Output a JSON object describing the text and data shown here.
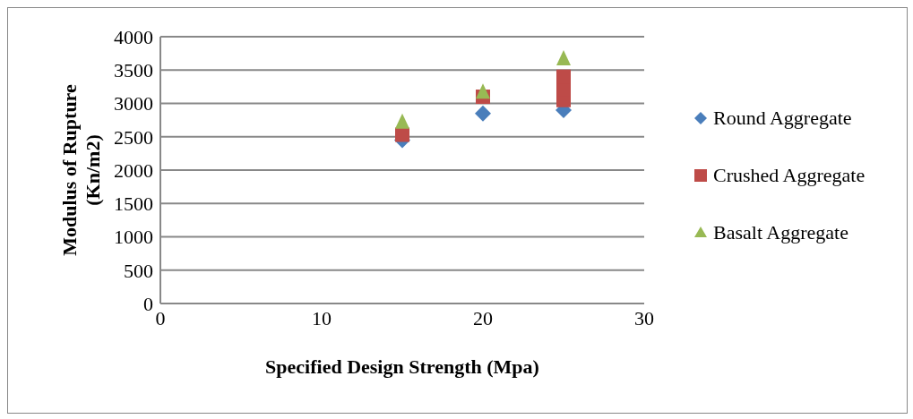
{
  "chart_data": {
    "type": "scatter",
    "xlabel": "Specified Design Strength (Mpa)",
    "ylabel": "Modulus of Rupture (Kn/m2)",
    "series": [
      {
        "name": "Round Aggregate",
        "color": "#4a7ebb",
        "marker": "diamond",
        "x": [
          15,
          20,
          25
        ],
        "values": [
          2450,
          2850,
          2900
        ]
      },
      {
        "name": "Crushed Aggregate",
        "color": "#be4b48",
        "marker": "square",
        "x": [
          15,
          20,
          25,
          25,
          25
        ],
        "values": [
          2530,
          3100,
          3050,
          3220,
          3400
        ]
      },
      {
        "name": "Basalt Aggregate",
        "color": "#98b954",
        "marker": "triangle",
        "x": [
          15,
          20,
          25
        ],
        "values": [
          2700,
          3150,
          3650
        ]
      }
    ],
    "xlim": [
      0,
      30
    ],
    "xticks": [
      0,
      10,
      20,
      30
    ],
    "ylim": [
      0,
      4000
    ],
    "yticks": [
      0,
      500,
      1000,
      1500,
      2000,
      2500,
      3000,
      3500,
      4000
    ],
    "grid": "y",
    "legend": "right"
  }
}
